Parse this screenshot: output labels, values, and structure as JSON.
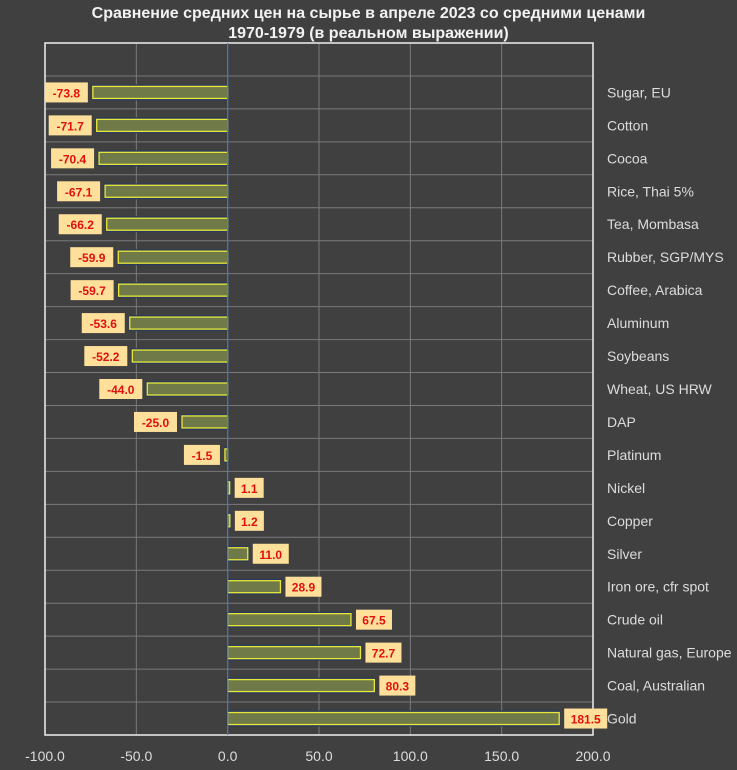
{
  "chart_data": {
    "type": "bar",
    "orientation": "horizontal",
    "title": "Сравнение средних цен на сырье в апреле 2023 со средними ценами 1970-1979 (в реальном выражении)",
    "title_lines": [
      "Сравнение средних цен на сырье в апреле 2023 со средними ценами",
      "1970-1979 (в реальном выражении)"
    ],
    "xlabel": "",
    "ylabel": "",
    "xlim": [
      -100,
      200
    ],
    "xticks": [
      -100,
      -50,
      0,
      50,
      100,
      150,
      200
    ],
    "xtick_labels": [
      "-100.0",
      "-50.0",
      "0.0",
      "50.0",
      "100.0",
      "150.0",
      "200.0"
    ],
    "grid": true,
    "categories": [
      "Sugar, EU",
      "Cotton",
      "Cocoa",
      "Rice, Thai 5%",
      "Tea, Mombasa",
      "Rubber, SGP/MYS",
      "Coffee, Arabica",
      "Aluminum",
      "Soybeans",
      "Wheat, US HRW",
      "DAP",
      "Platinum",
      "Nickel",
      "Copper",
      "Silver",
      "Iron ore, cfr spot",
      "Crude oil",
      "Natural gas, Europe",
      "Coal, Australian",
      "Gold"
    ],
    "values": [
      -73.8,
      -71.7,
      -70.4,
      -67.1,
      -66.2,
      -59.9,
      -59.7,
      -53.6,
      -52.2,
      -44.0,
      -25.0,
      -1.5,
      1.1,
      1.2,
      11.0,
      28.9,
      67.5,
      72.7,
      80.3,
      181.5
    ],
    "data_labels": [
      "-73.8",
      "-71.7",
      "-70.4",
      "-67.1",
      "-66.2",
      "-59.9",
      "-59.7",
      "-53.6",
      "-52.2",
      "-44.0",
      "-25.0",
      "-1.5",
      "1.1",
      "1.2",
      "11.0",
      "28.9",
      "67.5",
      "72.7",
      "80.3",
      "181.5"
    ],
    "colors": {
      "bar_fill": "#707a48",
      "bar_border": "#e8e83a",
      "label_bg": "#ffe09a",
      "label_text": "#e01010",
      "zero_line": "#4a78c0",
      "grid": "#7a7a7a",
      "text": "#dcdcdc"
    }
  }
}
